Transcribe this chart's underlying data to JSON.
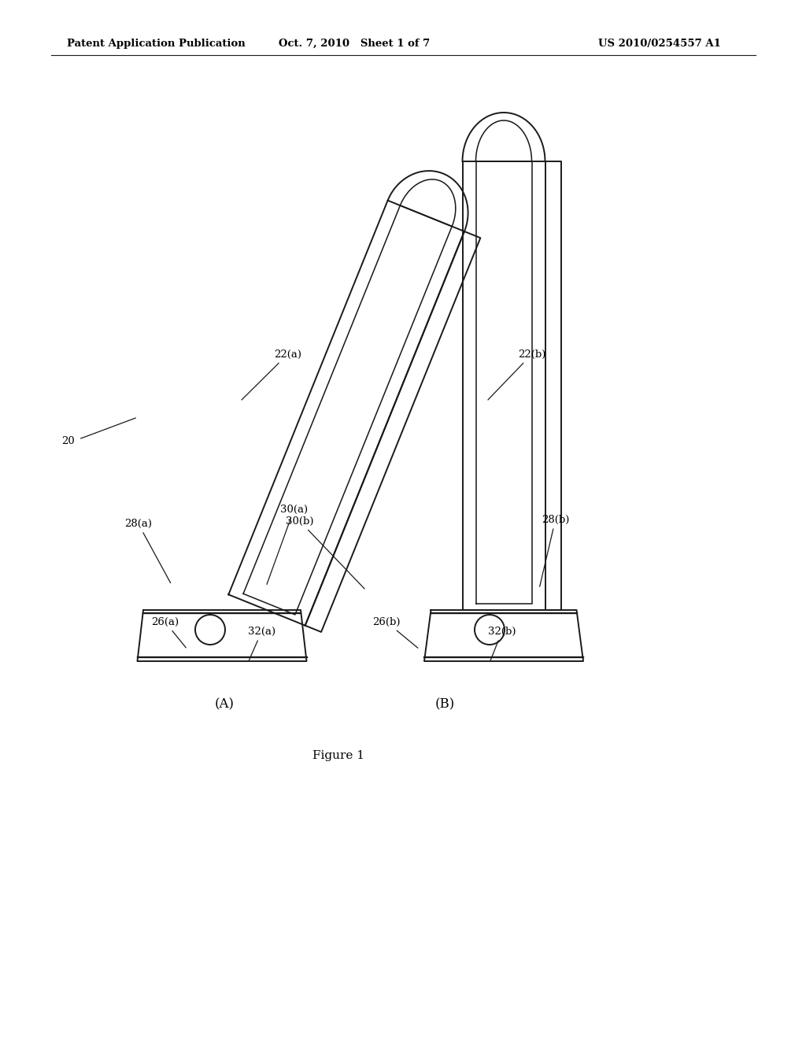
{
  "title_left": "Patent Application Publication",
  "title_mid": "Oct. 7, 2010   Sheet 1 of 7",
  "title_right": "US 2010/0254557 A1",
  "figure_label": "Figure 1",
  "label_A": "(A)",
  "label_B": "(B)",
  "bg_color": "#ffffff",
  "line_color": "#1a1a1a",
  "line_width": 1.4,
  "fig_w": 10.24,
  "fig_h": 13.2,
  "dpi": 100
}
